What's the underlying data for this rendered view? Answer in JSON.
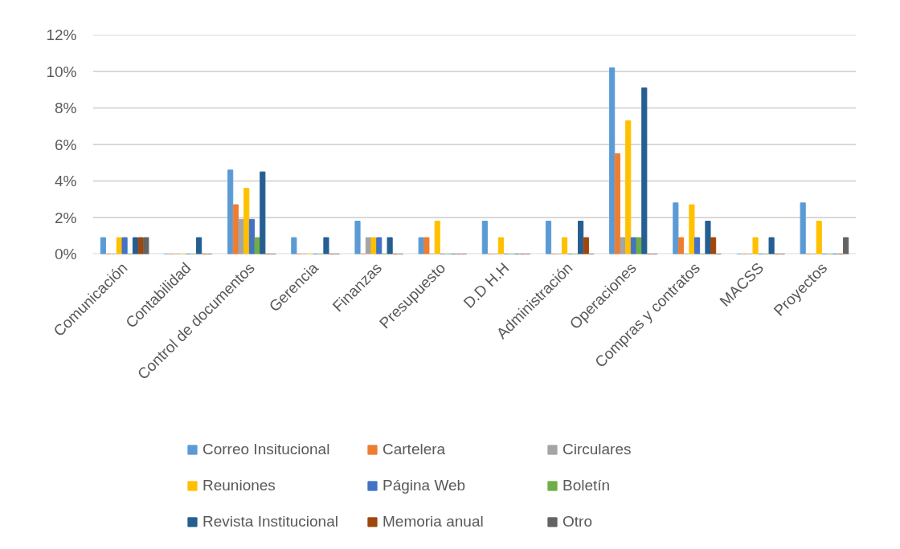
{
  "chart_data": {
    "type": "bar",
    "categories": [
      "Comunicación",
      "Contabilidad",
      "Control de documentos",
      "Gerencia",
      "Finanzas",
      "Presupuesto",
      "D.D H.H",
      "Administración",
      "Operaciones",
      "Compras y contratos",
      "MACSS",
      "Proyectos"
    ],
    "series": [
      {
        "name": "Correo Insitucional",
        "color": "#5b9bd5",
        "values": [
          0.9,
          0,
          4.6,
          0.9,
          1.8,
          0.9,
          1.8,
          1.8,
          10.2,
          2.8,
          0,
          2.8
        ]
      },
      {
        "name": "Cartelera",
        "color": "#ed7d31",
        "values": [
          0,
          0,
          2.7,
          0,
          0,
          0.9,
          0,
          0,
          5.5,
          0.9,
          0,
          0
        ]
      },
      {
        "name": "Circulares",
        "color": "#a5a5a5",
        "values": [
          0,
          0,
          1.9,
          0,
          0.9,
          0,
          0,
          0,
          0.9,
          0,
          0,
          0
        ]
      },
      {
        "name": "Reuniones",
        "color": "#ffc000",
        "values": [
          0.9,
          0,
          3.6,
          0,
          0.9,
          1.8,
          0.9,
          0.9,
          7.3,
          2.7,
          0.9,
          1.8
        ]
      },
      {
        "name": "Página Web",
        "color": "#4472c4",
        "values": [
          0.9,
          0,
          1.9,
          0,
          0.9,
          0,
          0,
          0,
          0.9,
          0.9,
          0,
          0
        ]
      },
      {
        "name": "Boletín",
        "color": "#70ad47",
        "values": [
          0,
          0,
          0.9,
          0,
          0,
          0,
          0,
          0,
          0.9,
          0,
          0,
          0
        ]
      },
      {
        "name": "Revista Institucional",
        "color": "#255e91",
        "values": [
          0.9,
          0.9,
          4.5,
          0.9,
          0.9,
          0,
          0,
          1.8,
          9.1,
          1.8,
          0.9,
          0
        ]
      },
      {
        "name": "Memoria anual",
        "color": "#9e480e",
        "values": [
          0.9,
          0,
          0,
          0,
          0,
          0,
          0,
          0.9,
          0,
          0.9,
          0,
          0
        ]
      },
      {
        "name": "Otro",
        "color": "#636363",
        "values": [
          0.9,
          0,
          0,
          0,
          0,
          0,
          0,
          0,
          0,
          0,
          0,
          0.9
        ]
      }
    ],
    "ylim": [
      0,
      12
    ],
    "yticks": [
      {
        "value": 0,
        "label": "0%"
      },
      {
        "value": 2,
        "label": "2%"
      },
      {
        "value": 4,
        "label": "4%"
      },
      {
        "value": 6,
        "label": "6%"
      },
      {
        "value": 8,
        "label": "8%"
      },
      {
        "value": 10,
        "label": "10%"
      },
      {
        "value": 12,
        "label": "12%"
      }
    ],
    "grid": "y",
    "legend": "bottom"
  }
}
